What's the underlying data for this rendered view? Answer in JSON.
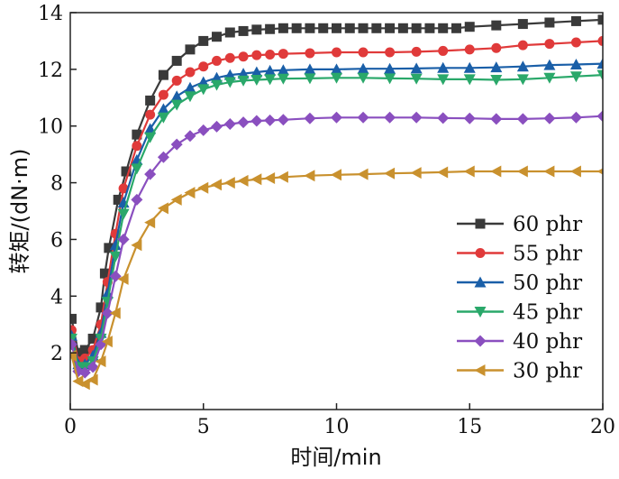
{
  "chart_data": {
    "type": "line",
    "title": "",
    "xlabel": "时间/min",
    "ylabel": "转矩/(dN·m)",
    "xlim": [
      0,
      20
    ],
    "ylim": [
      0,
      14
    ],
    "xticks": [
      0,
      5,
      10,
      15,
      20
    ],
    "yticks": [
      2,
      4,
      6,
      8,
      10,
      12,
      14
    ],
    "xtick_labels": [
      "0",
      "5",
      "10",
      "15",
      "20"
    ],
    "ytick_labels": [
      "2",
      "4",
      "6",
      "8",
      "10",
      "12",
      "14"
    ],
    "grid": false,
    "legend_position": "bottom-right",
    "series": [
      {
        "name": "60 phr",
        "color": "#3a3a3a",
        "marker": "square",
        "points": [
          [
            0.05,
            3.2
          ],
          [
            0.3,
            2.0
          ],
          [
            0.55,
            2.1
          ],
          [
            0.85,
            2.5
          ],
          [
            1.15,
            3.6
          ],
          [
            1.3,
            4.8
          ],
          [
            1.45,
            5.7
          ],
          [
            1.8,
            7.4
          ],
          [
            2.1,
            8.4
          ],
          [
            2.5,
            9.7
          ],
          [
            3.0,
            10.9
          ],
          [
            3.5,
            11.8
          ],
          [
            4.0,
            12.3
          ],
          [
            4.5,
            12.7
          ],
          [
            5.0,
            13.0
          ],
          [
            5.5,
            13.15
          ],
          [
            6.0,
            13.3
          ],
          [
            6.5,
            13.35
          ],
          [
            7.0,
            13.4
          ],
          [
            7.5,
            13.42
          ],
          [
            8.0,
            13.45
          ],
          [
            8.5,
            13.45
          ],
          [
            9.0,
            13.45
          ],
          [
            9.5,
            13.45
          ],
          [
            10.0,
            13.45
          ],
          [
            10.5,
            13.45
          ],
          [
            11.0,
            13.45
          ],
          [
            11.5,
            13.45
          ],
          [
            12.0,
            13.45
          ],
          [
            12.5,
            13.45
          ],
          [
            13.0,
            13.45
          ],
          [
            13.5,
            13.45
          ],
          [
            14.0,
            13.45
          ],
          [
            14.5,
            13.45
          ],
          [
            15.0,
            13.5
          ],
          [
            16.0,
            13.55
          ],
          [
            17.0,
            13.6
          ],
          [
            18.0,
            13.65
          ],
          [
            19.0,
            13.7
          ],
          [
            20.0,
            13.75
          ]
        ]
      },
      {
        "name": "55 phr",
        "color": "#e03a3a",
        "marker": "circle",
        "points": [
          [
            0.05,
            2.8
          ],
          [
            0.3,
            1.7
          ],
          [
            0.55,
            1.8
          ],
          [
            0.85,
            2.1
          ],
          [
            1.15,
            3.0
          ],
          [
            1.4,
            4.5
          ],
          [
            1.7,
            6.2
          ],
          [
            2.0,
            7.8
          ],
          [
            2.5,
            9.3
          ],
          [
            3.0,
            10.4
          ],
          [
            3.5,
            11.1
          ],
          [
            4.0,
            11.6
          ],
          [
            4.5,
            11.9
          ],
          [
            5.0,
            12.1
          ],
          [
            5.5,
            12.3
          ],
          [
            6.0,
            12.4
          ],
          [
            6.5,
            12.45
          ],
          [
            7.0,
            12.5
          ],
          [
            7.5,
            12.52
          ],
          [
            8.0,
            12.55
          ],
          [
            9.0,
            12.57
          ],
          [
            10.0,
            12.6
          ],
          [
            11.0,
            12.6
          ],
          [
            12.0,
            12.6
          ],
          [
            13.0,
            12.62
          ],
          [
            14.0,
            12.65
          ],
          [
            15.0,
            12.7
          ],
          [
            16.0,
            12.75
          ],
          [
            17.0,
            12.85
          ],
          [
            18.0,
            12.9
          ],
          [
            19.0,
            12.95
          ],
          [
            20.0,
            13.0
          ]
        ]
      },
      {
        "name": "50 phr",
        "color": "#1a5fa8",
        "marker": "triangle-up",
        "points": [
          [
            0.05,
            2.6
          ],
          [
            0.3,
            1.6
          ],
          [
            0.55,
            1.6
          ],
          [
            0.85,
            1.9
          ],
          [
            1.15,
            2.7
          ],
          [
            1.4,
            4.1
          ],
          [
            1.7,
            5.8
          ],
          [
            2.0,
            7.3
          ],
          [
            2.5,
            8.8
          ],
          [
            3.0,
            9.9
          ],
          [
            3.5,
            10.6
          ],
          [
            4.0,
            11.05
          ],
          [
            4.5,
            11.35
          ],
          [
            5.0,
            11.55
          ],
          [
            5.5,
            11.7
          ],
          [
            6.0,
            11.8
          ],
          [
            6.5,
            11.85
          ],
          [
            7.0,
            11.9
          ],
          [
            7.5,
            11.95
          ],
          [
            8.0,
            11.97
          ],
          [
            9.0,
            12.0
          ],
          [
            10.0,
            12.0
          ],
          [
            11.0,
            12.02
          ],
          [
            12.0,
            12.02
          ],
          [
            13.0,
            12.03
          ],
          [
            14.0,
            12.05
          ],
          [
            15.0,
            12.05
          ],
          [
            16.0,
            12.07
          ],
          [
            17.0,
            12.1
          ],
          [
            18.0,
            12.15
          ],
          [
            19.0,
            12.17
          ],
          [
            20.0,
            12.2
          ]
        ]
      },
      {
        "name": "45 phr",
        "color": "#2aa86a",
        "marker": "triangle-down",
        "points": [
          [
            0.05,
            2.5
          ],
          [
            0.3,
            1.5
          ],
          [
            0.55,
            1.5
          ],
          [
            0.85,
            1.7
          ],
          [
            1.15,
            2.5
          ],
          [
            1.4,
            3.8
          ],
          [
            1.7,
            5.4
          ],
          [
            2.0,
            6.9
          ],
          [
            2.5,
            8.5
          ],
          [
            3.0,
            9.6
          ],
          [
            3.5,
            10.3
          ],
          [
            4.0,
            10.75
          ],
          [
            4.5,
            11.05
          ],
          [
            5.0,
            11.3
          ],
          [
            5.5,
            11.45
          ],
          [
            6.0,
            11.55
          ],
          [
            6.5,
            11.6
          ],
          [
            7.0,
            11.63
          ],
          [
            7.5,
            11.65
          ],
          [
            8.0,
            11.67
          ],
          [
            9.0,
            11.68
          ],
          [
            10.0,
            11.7
          ],
          [
            11.0,
            11.7
          ],
          [
            12.0,
            11.68
          ],
          [
            13.0,
            11.67
          ],
          [
            14.0,
            11.65
          ],
          [
            15.0,
            11.65
          ],
          [
            16.0,
            11.63
          ],
          [
            17.0,
            11.65
          ],
          [
            18.0,
            11.7
          ],
          [
            19.0,
            11.75
          ],
          [
            20.0,
            11.8
          ]
        ]
      },
      {
        "name": "40 phr",
        "color": "#8a4fbf",
        "marker": "diamond",
        "points": [
          [
            0.05,
            2.3
          ],
          [
            0.3,
            1.35
          ],
          [
            0.55,
            1.3
          ],
          [
            0.85,
            1.5
          ],
          [
            1.15,
            2.3
          ],
          [
            1.4,
            3.4
          ],
          [
            1.7,
            4.7
          ],
          [
            2.0,
            6.0
          ],
          [
            2.5,
            7.4
          ],
          [
            3.0,
            8.3
          ],
          [
            3.5,
            8.9
          ],
          [
            4.0,
            9.35
          ],
          [
            4.5,
            9.65
          ],
          [
            5.0,
            9.85
          ],
          [
            5.5,
            9.98
          ],
          [
            6.0,
            10.07
          ],
          [
            6.5,
            10.13
          ],
          [
            7.0,
            10.18
          ],
          [
            7.5,
            10.2
          ],
          [
            8.0,
            10.22
          ],
          [
            9.0,
            10.27
          ],
          [
            10.0,
            10.3
          ],
          [
            11.0,
            10.3
          ],
          [
            12.0,
            10.3
          ],
          [
            13.0,
            10.3
          ],
          [
            14.0,
            10.28
          ],
          [
            15.0,
            10.27
          ],
          [
            16.0,
            10.25
          ],
          [
            17.0,
            10.25
          ],
          [
            18.0,
            10.27
          ],
          [
            19.0,
            10.3
          ],
          [
            20.0,
            10.35
          ]
        ]
      },
      {
        "name": "30 phr",
        "color": "#c9912e",
        "marker": "triangle-left",
        "points": [
          [
            0.05,
            1.9
          ],
          [
            0.3,
            1.0
          ],
          [
            0.55,
            0.9
          ],
          [
            0.85,
            1.05
          ],
          [
            1.15,
            1.7
          ],
          [
            1.4,
            2.4
          ],
          [
            1.7,
            3.4
          ],
          [
            2.0,
            4.6
          ],
          [
            2.5,
            5.8
          ],
          [
            3.0,
            6.6
          ],
          [
            3.5,
            7.1
          ],
          [
            4.0,
            7.4
          ],
          [
            4.5,
            7.65
          ],
          [
            5.0,
            7.82
          ],
          [
            5.5,
            7.93
          ],
          [
            6.0,
            8.0
          ],
          [
            6.5,
            8.07
          ],
          [
            7.0,
            8.12
          ],
          [
            7.5,
            8.16
          ],
          [
            8.0,
            8.2
          ],
          [
            9.0,
            8.25
          ],
          [
            10.0,
            8.28
          ],
          [
            11.0,
            8.3
          ],
          [
            12.0,
            8.33
          ],
          [
            13.0,
            8.35
          ],
          [
            14.0,
            8.37
          ],
          [
            15.0,
            8.4
          ],
          [
            16.0,
            8.4
          ],
          [
            17.0,
            8.4
          ],
          [
            18.0,
            8.4
          ],
          [
            19.0,
            8.4
          ],
          [
            20.0,
            8.4
          ]
        ]
      }
    ]
  }
}
